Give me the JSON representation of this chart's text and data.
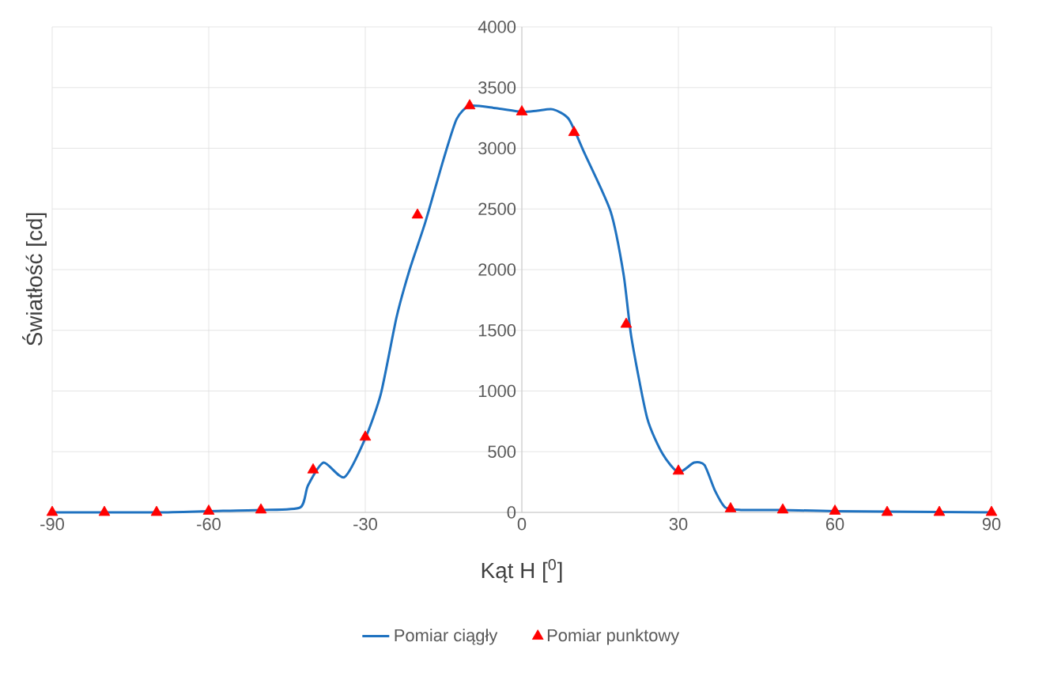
{
  "chart_data": {
    "type": "line",
    "xlabel": "Kąt H [$^{0}$]",
    "ylabel": "Światłość [cd]",
    "xlim": [
      -90,
      90
    ],
    "ylim": [
      0,
      4000
    ],
    "xticks": [
      -90,
      -60,
      -30,
      0,
      30,
      60,
      90
    ],
    "yticks": [
      0,
      500,
      1000,
      1500,
      2000,
      2500,
      3000,
      3500,
      4000
    ],
    "grid": true,
    "legend": "bottom",
    "series": [
      {
        "name": "Pomiar ciągły",
        "color": "#1f72c0",
        "marker": "none",
        "x": [
          -90,
          -70,
          -60,
          -50,
          -42.5,
          -41,
          -38,
          -34,
          -30,
          -27,
          -24,
          -21.5,
          -18.5,
          -15,
          -12.5,
          -10,
          -5,
          0,
          3,
          6,
          9,
          12,
          17,
          19.5,
          21,
          24,
          27,
          30,
          33,
          35,
          37,
          39,
          42,
          50,
          60,
          90
        ],
        "values": [
          0,
          0,
          10,
          20,
          40,
          220,
          410,
          290,
          610,
          980,
          1610,
          2000,
          2390,
          2910,
          3240,
          3350,
          3330,
          3300,
          3310,
          3320,
          3240,
          2960,
          2480,
          1960,
          1440,
          780,
          480,
          330,
          410,
          390,
          180,
          40,
          20,
          20,
          10,
          0
        ]
      },
      {
        "name": "Pomiar punktowy",
        "type": "scatter",
        "color": "#ff0000",
        "marker": "triangle",
        "x": [
          -90,
          -80,
          -70,
          -60,
          -50,
          -40,
          -30,
          -20,
          -10,
          0,
          10,
          20,
          30,
          40,
          50,
          60,
          70,
          80,
          90
        ],
        "values": [
          0,
          0,
          0,
          10,
          20,
          350,
          620,
          2450,
          3350,
          3300,
          3130,
          1550,
          340,
          30,
          20,
          10,
          0,
          0,
          0
        ]
      }
    ]
  }
}
